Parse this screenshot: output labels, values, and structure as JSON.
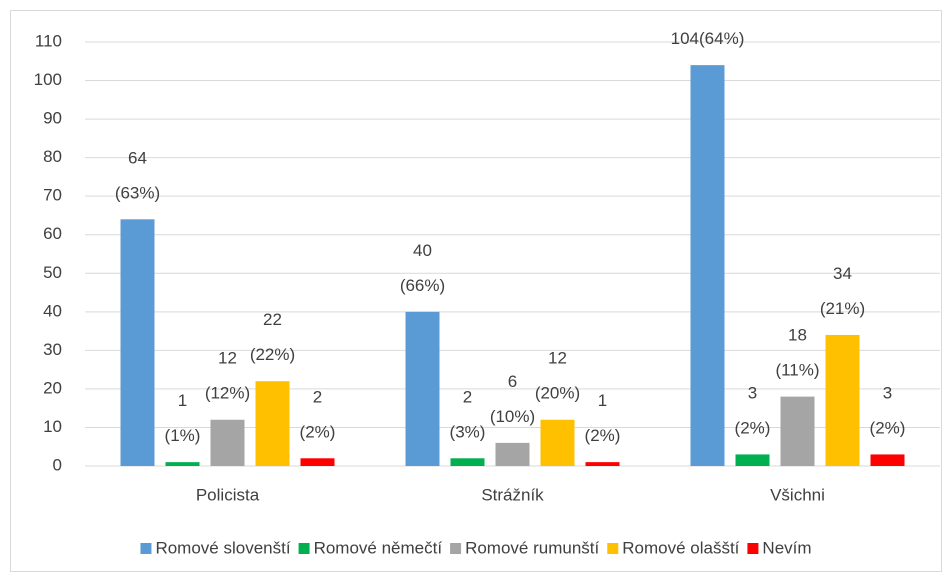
{
  "chart_data": {
    "type": "bar",
    "categories": [
      "Policista",
      "Strážník",
      "Všichni"
    ],
    "series": [
      {
        "name": "Romové slovenští",
        "color": "#5b9bd5",
        "values": [
          64,
          40,
          104
        ],
        "value_labels": [
          "64\n(63%)",
          "40\n(66%)",
          "104(64%)"
        ]
      },
      {
        "name": "Romové němečtí",
        "color": "#00b050",
        "values": [
          1,
          2,
          3
        ],
        "value_labels": [
          "1\n(1%)",
          "2\n(3%)",
          "3\n(2%)"
        ]
      },
      {
        "name": "Romové rumunští",
        "color": "#a5a5a5",
        "values": [
          12,
          6,
          18
        ],
        "value_labels": [
          "12\n(12%)",
          "6\n(10%)",
          "18\n(11%)"
        ]
      },
      {
        "name": "Romové olašští",
        "color": "#ffc000",
        "values": [
          22,
          12,
          34
        ],
        "value_labels": [
          "22\n(22%)",
          "12\n(20%)",
          "34\n(21%)"
        ]
      },
      {
        "name": "Nevím",
        "color": "#ff0000",
        "values": [
          2,
          1,
          3
        ],
        "value_labels": [
          "2\n(2%)",
          "1\n(2%)",
          "3\n(2%)"
        ]
      }
    ],
    "ylim": [
      0,
      110
    ],
    "yticks": [
      0,
      10,
      20,
      30,
      40,
      50,
      60,
      70,
      80,
      90,
      100,
      110
    ],
    "grid": true,
    "legend": "bottom"
  }
}
